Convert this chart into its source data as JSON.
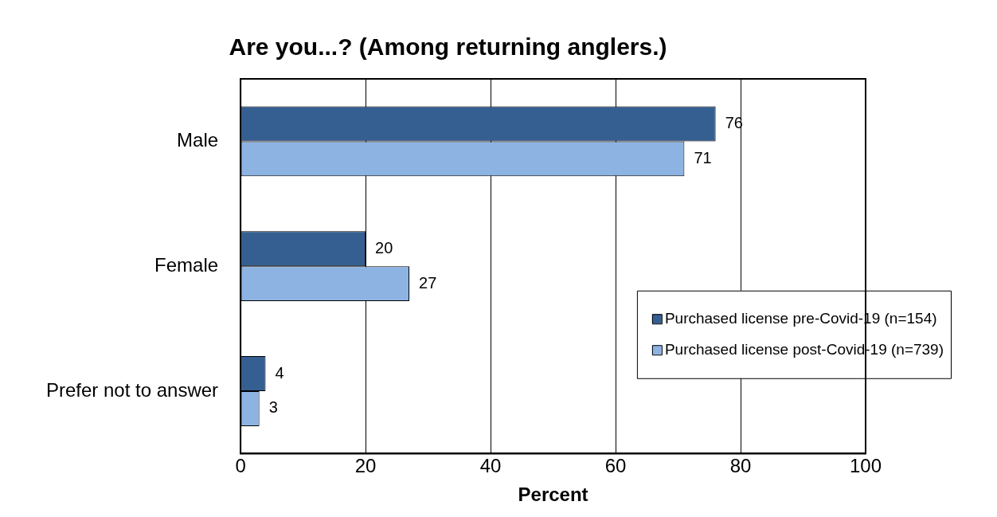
{
  "chart_data": {
    "type": "bar",
    "orientation": "horizontal",
    "title": "Are you...? (Among returning anglers.)",
    "xlabel": "Percent",
    "categories": [
      "Male",
      "Female",
      "Prefer not to answer"
    ],
    "series": [
      {
        "name": "Purchased license pre-Covid-19 (n=154)",
        "color": "#355f91",
        "values": [
          76,
          20,
          4
        ]
      },
      {
        "name": "Purchased license post-Covid-19 (n=739)",
        "color": "#8db3e2",
        "values": [
          71,
          27,
          3
        ]
      }
    ],
    "xlim": [
      0,
      100
    ],
    "xticks": [
      0,
      20,
      40,
      60,
      80,
      100
    ],
    "grid": "x",
    "legend": "right",
    "data_labels": true
  }
}
